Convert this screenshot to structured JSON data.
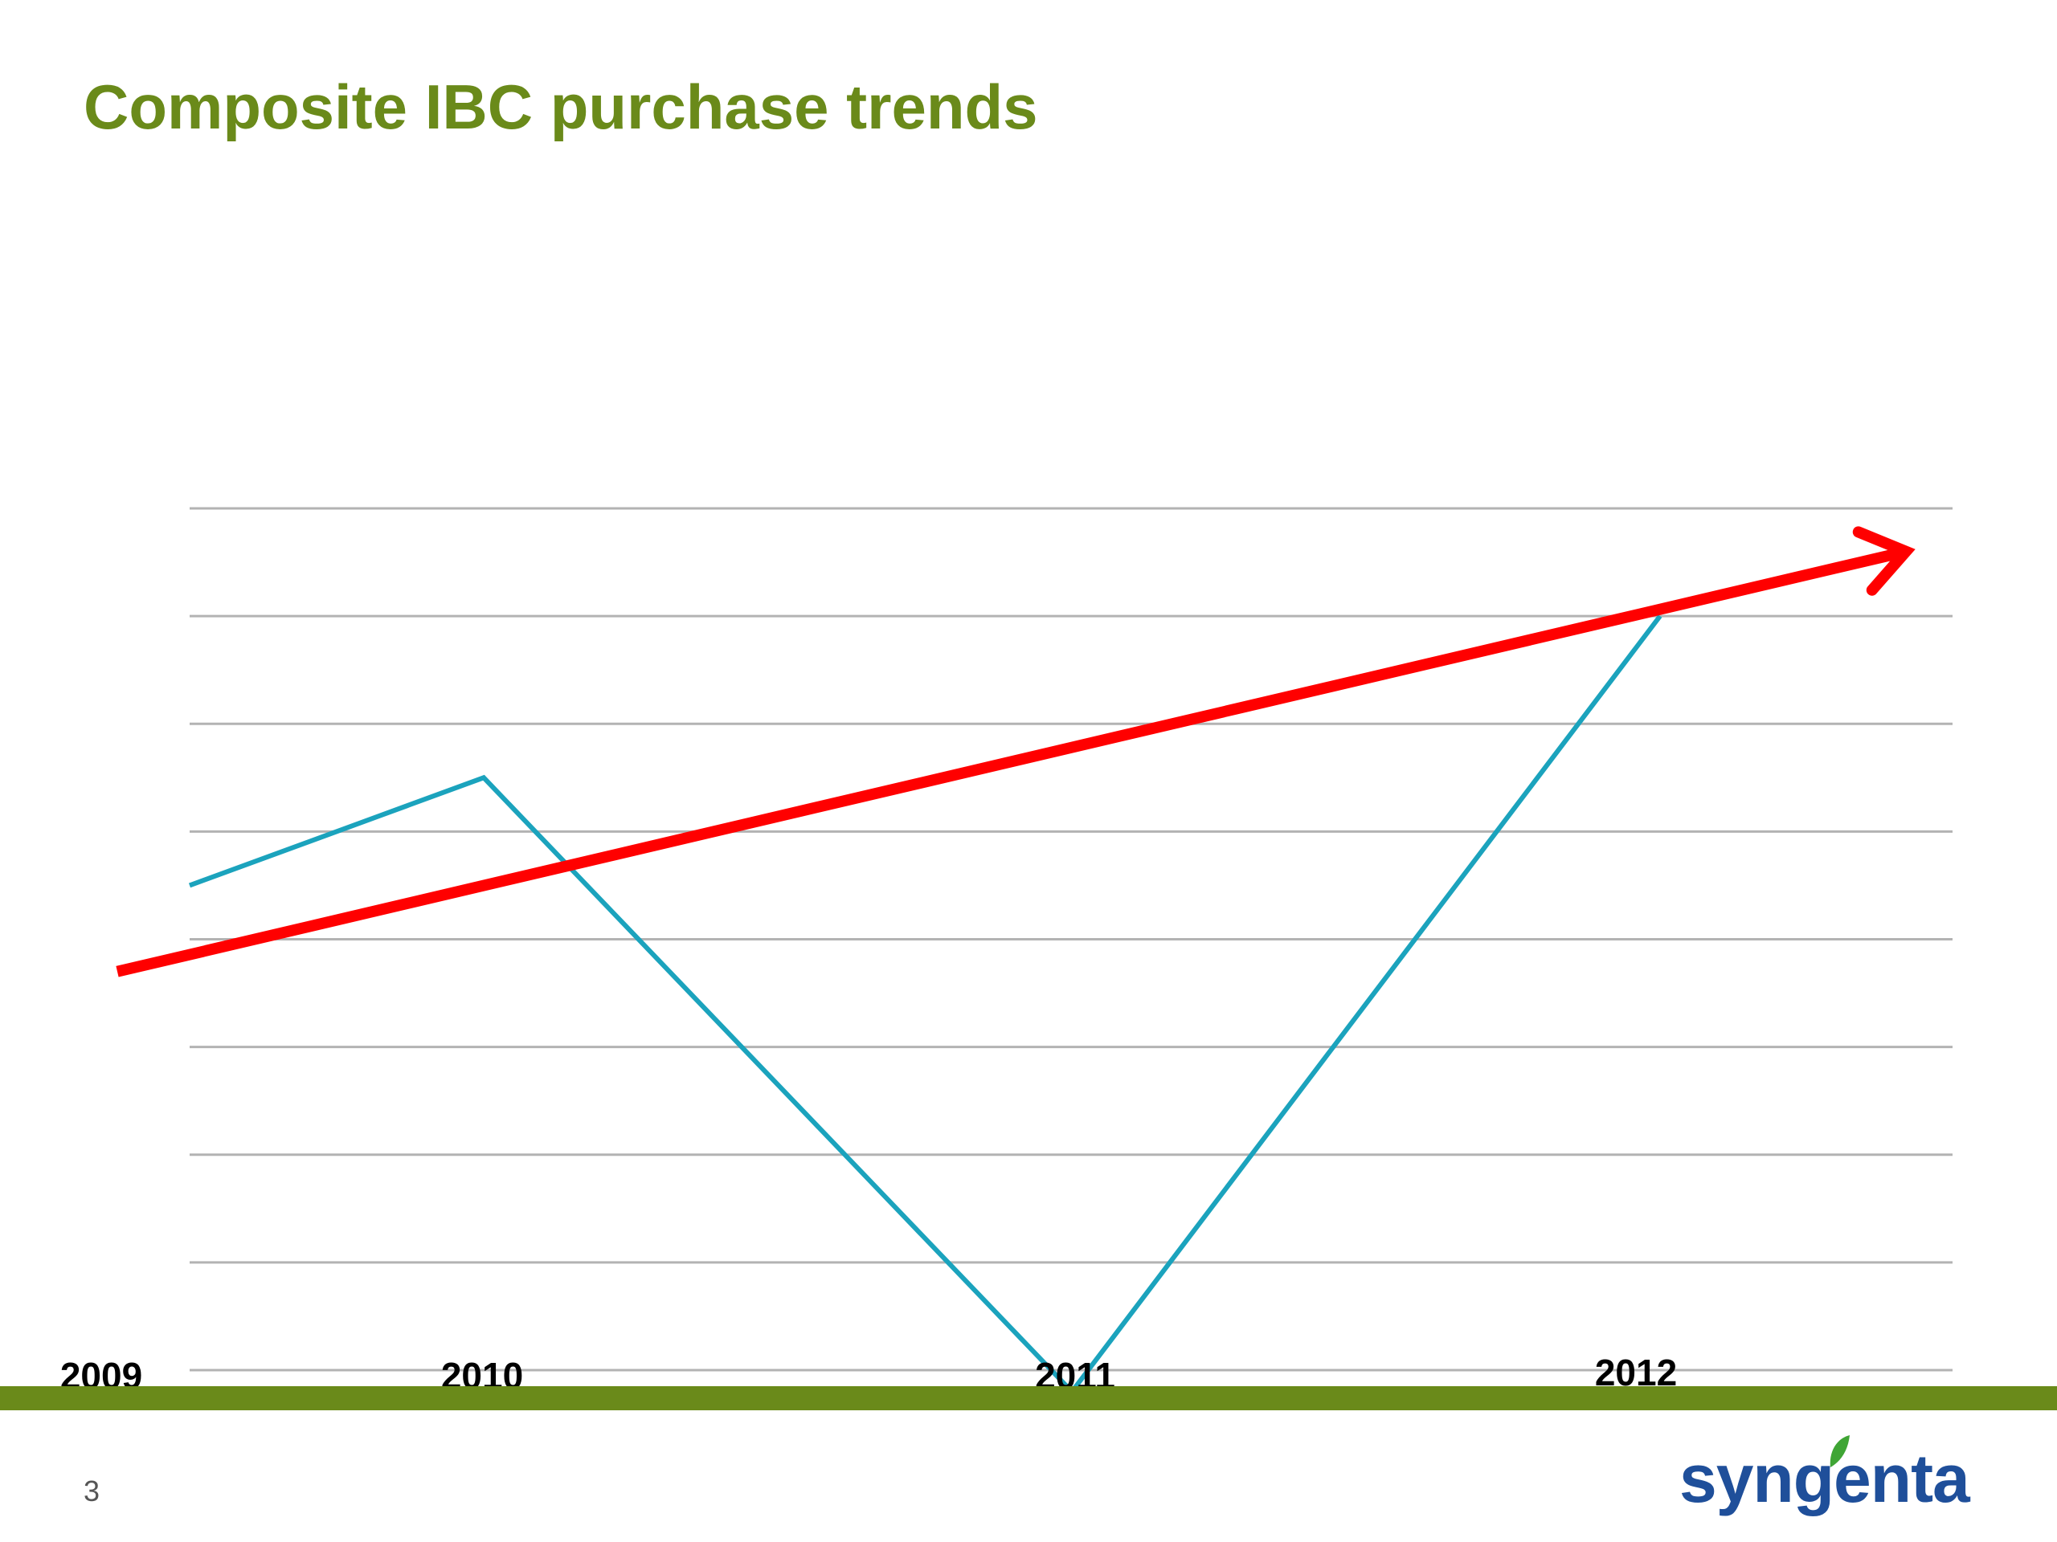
{
  "slide": {
    "title": "Composite IBC purchase trends",
    "page_number": "3",
    "brand": "syngenta"
  },
  "colors": {
    "title": "#6a8a1a",
    "footer_bar": "#6a8a1a",
    "series_line": "#1ba3bd",
    "trend_arrow": "#ff0000",
    "gridline": "#b3b3b3",
    "logo_text": "#1f4f9a",
    "logo_leaf": "#3fa535"
  },
  "chart_data": {
    "type": "line",
    "title": "",
    "xlabel": "",
    "ylabel": "",
    "y_tick_labels_shown": false,
    "grid": "horizontal",
    "gridline_count": 9,
    "ylim": [
      0,
      8
    ],
    "categories": [
      "2009",
      "2010",
      "2011",
      "2012"
    ],
    "series": [
      {
        "values": [
          4.5,
          5.5,
          -0.2,
          7.0
        ]
      }
    ],
    "annotations": [
      {
        "type": "trend-arrow",
        "direction": "up-right",
        "from": 3.7,
        "to": 7.6
      }
    ]
  }
}
